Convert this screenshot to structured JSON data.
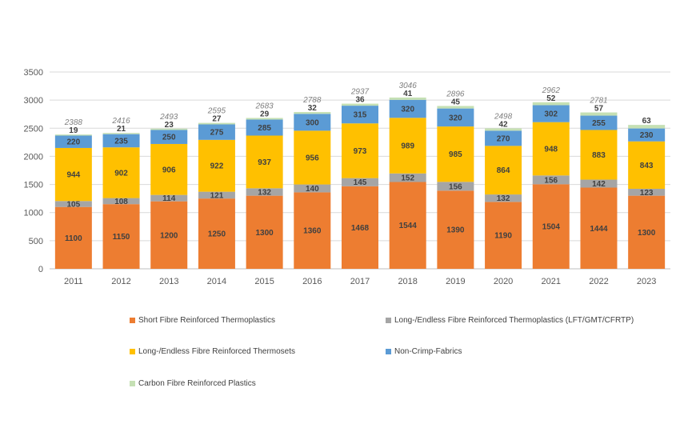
{
  "chart_data": {
    "type": "bar",
    "stacked": true,
    "title": "",
    "xlabel": "",
    "ylabel": "",
    "ylim": [
      0,
      3500
    ],
    "yticks": [
      0,
      500,
      1000,
      1500,
      2000,
      2500,
      3000,
      3500
    ],
    "grid": true,
    "legend_position": "bottom",
    "categories": [
      "2011",
      "2012",
      "2013",
      "2014",
      "2015",
      "2016",
      "2017",
      "2018",
      "2019",
      "2020",
      "2021",
      "2022",
      "2023"
    ],
    "series": [
      {
        "name": "Short Fibre Reinforced Thermoplastics",
        "color": "#ed7d31",
        "values": [
          1100,
          1150,
          1200,
          1250,
          1300,
          1360,
          1468,
          1544,
          1390,
          1190,
          1504,
          1444,
          1300
        ]
      },
      {
        "name": "Long-/Endless Fibre Reinforced Thermoplastics (LFT/GMT/CFRTP)",
        "color": "#a5a5a5",
        "values": [
          105,
          108,
          114,
          121,
          132,
          140,
          145,
          152,
          156,
          132,
          156,
          142,
          123
        ]
      },
      {
        "name": "Long-/Endless Fibre Reinforced Thermosets",
        "color": "#ffc000",
        "values": [
          944,
          902,
          906,
          922,
          937,
          956,
          973,
          989,
          985,
          864,
          948,
          883,
          843
        ]
      },
      {
        "name": "Non-Crimp-Fabrics",
        "color": "#5b9bd5",
        "values": [
          220,
          235,
          250,
          275,
          285,
          300,
          315,
          320,
          320,
          270,
          302,
          255,
          230
        ]
      },
      {
        "name": "Carbon Fibre Reinforced Plastics",
        "color": "#c5e0b4",
        "values": [
          19,
          21,
          23,
          27,
          29,
          32,
          36,
          41,
          45,
          42,
          52,
          57,
          63
        ]
      }
    ],
    "totals": [
      "2388",
      "2416",
      "2493",
      "2595",
      "2683",
      "2788",
      "2937",
      "3046",
      "2896",
      "2498",
      "2962",
      "2781",
      ""
    ]
  }
}
